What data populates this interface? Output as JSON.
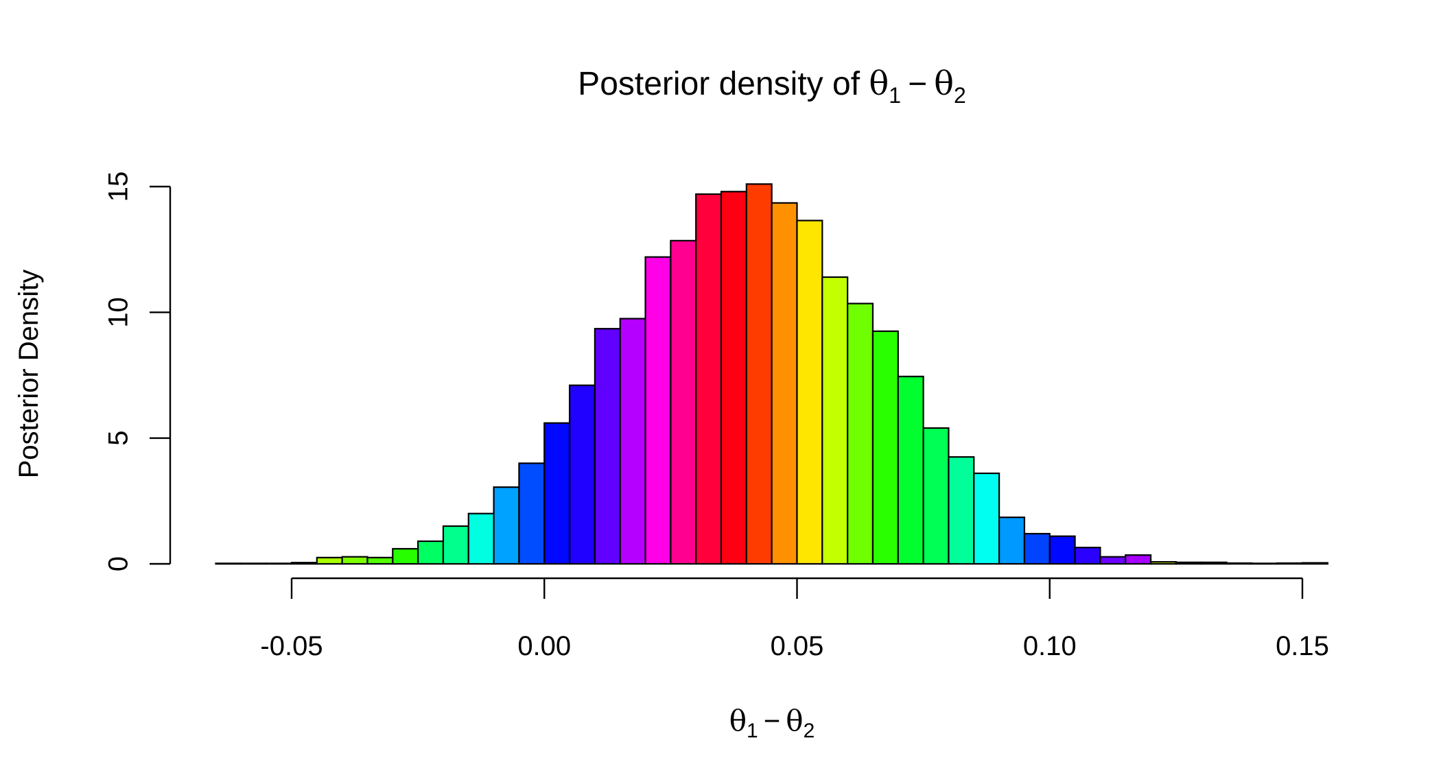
{
  "chart_data": {
    "type": "bar",
    "title": {
      "prefix": "Posterior density of ",
      "theta": "θ",
      "sub1": "1",
      "minus": "−",
      "sub2": "2"
    },
    "xlabel": {
      "theta": "θ",
      "sub1": "1",
      "minus": "−",
      "sub2": "2"
    },
    "ylabel": "Posterior Density",
    "x_ticks": [
      {
        "value": -0.05,
        "label": "-0.05"
      },
      {
        "value": 0.0,
        "label": "0.00"
      },
      {
        "value": 0.05,
        "label": "0.05"
      },
      {
        "value": 0.1,
        "label": "0.10"
      },
      {
        "value": 0.15,
        "label": "0.15"
      }
    ],
    "y_ticks": [
      {
        "value": 0,
        "label": "0"
      },
      {
        "value": 5,
        "label": "5"
      },
      {
        "value": 10,
        "label": "10"
      },
      {
        "value": 15,
        "label": "15"
      }
    ],
    "xlim": [
      -0.065,
      0.155
    ],
    "ylim": [
      0,
      15
    ],
    "bin_width": 0.005,
    "bin_start": -0.065,
    "grid": false,
    "legend": "none",
    "bar_outline": "#000000",
    "values": [
      0.02,
      0.02,
      0.02,
      0.05,
      0.25,
      0.28,
      0.25,
      0.6,
      0.9,
      1.5,
      2.0,
      3.05,
      4.0,
      5.6,
      7.1,
      9.35,
      9.75,
      12.2,
      12.85,
      14.7,
      14.8,
      15.1,
      14.35,
      13.65,
      11.4,
      10.35,
      9.25,
      7.45,
      5.4,
      4.25,
      3.6,
      1.85,
      1.2,
      1.1,
      0.65,
      0.28,
      0.35,
      0.08,
      0.06,
      0.06,
      0.03,
      0.02,
      0.03,
      0.04
    ],
    "colors": [
      "#E3FF00",
      "#AAFF00",
      "#71FF00",
      "#D4FF00",
      "#A9FF00",
      "#7EFF00",
      "#53FF00",
      "#27FF00",
      "#00FF62",
      "#00FF8C",
      "#00FFE1",
      "#00A2FF",
      "#004DFF",
      "#0008FF",
      "#2000FF",
      "#6000FF",
      "#B600FF",
      "#FF00E7",
      "#FF0091",
      "#FF003C",
      "#FF0012",
      "#FF3C00",
      "#FF9100",
      "#FFE600",
      "#C4FF00",
      "#6FFF00",
      "#2AFF00",
      "#00FF2E",
      "#00FF55",
      "#00FF9B",
      "#00FFF1",
      "#0099FF",
      "#0044FF",
      "#0008FF",
      "#2A00FF",
      "#6C00FF",
      "#A800FF",
      "#E0FF00",
      "#A6FF00",
      "#6AFF00",
      "#E2FF00",
      "#B0FF00",
      "#77FF00",
      "#49FF00"
    ]
  }
}
